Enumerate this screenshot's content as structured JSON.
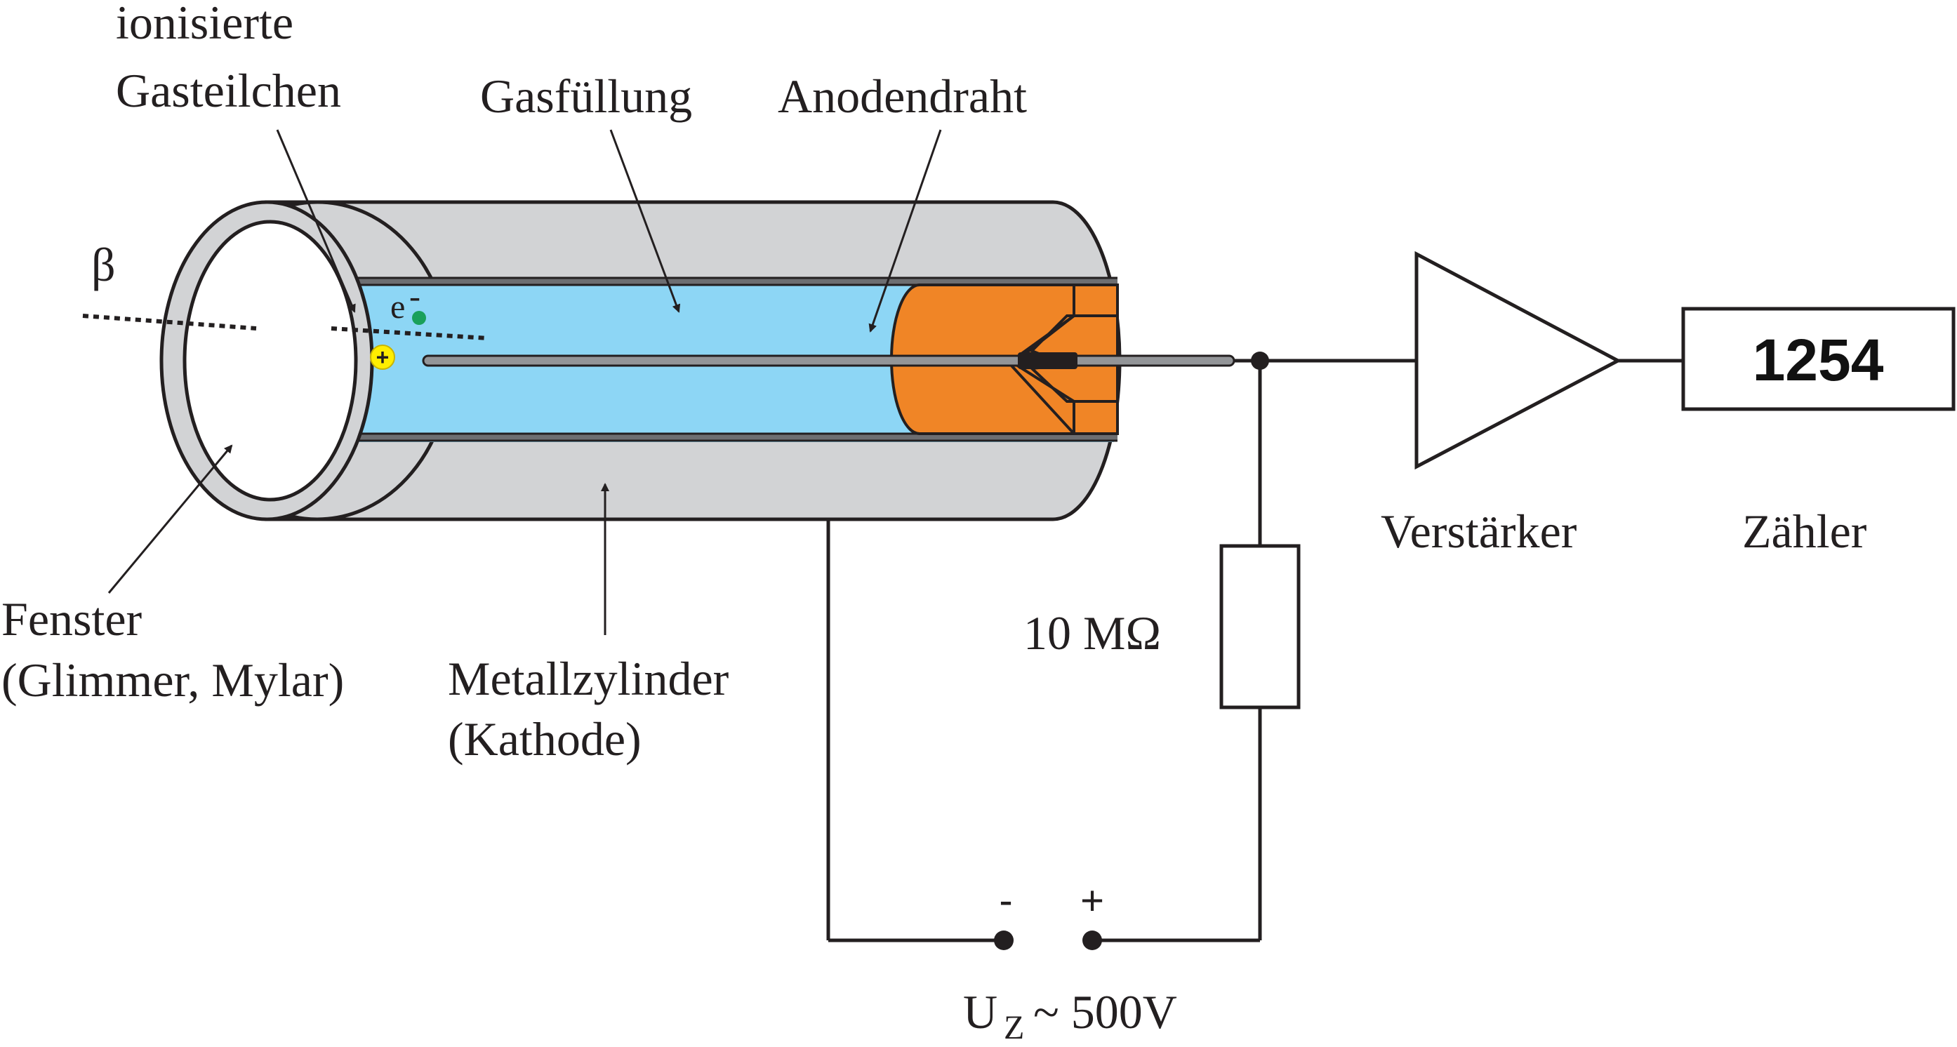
{
  "labels": {
    "ionized_line1": "ionisierte",
    "ionized_line2": "Gasteilchen",
    "gas_filling": "Gasfüllung",
    "anode_wire": "Anodendraht",
    "beta": "β",
    "electron_symbol": "e",
    "electron_charge": "-",
    "ion_charge": "+",
    "window_line1": "Fenster",
    "window_line2": "(Glimmer, Mylar)",
    "cylinder_line1": "Metallzylinder",
    "cylinder_line2": "(Kathode)",
    "resistor": "10 MΩ",
    "amplifier": "Verstärker",
    "counter": "Zähler",
    "counter_value": "1254",
    "supply_minus": "-",
    "supply_plus": "+",
    "voltage_symbol": "U",
    "voltage_subscript": "Z",
    "voltage_value": "~ 500V"
  },
  "colors": {
    "gas": "#8dd6f5",
    "metal": "#d2d3d5",
    "orange_insulator": "#f08526",
    "stroke": "#231f20",
    "ion_yellow": "#ffee00",
    "electron_green": "#1aa05a"
  }
}
